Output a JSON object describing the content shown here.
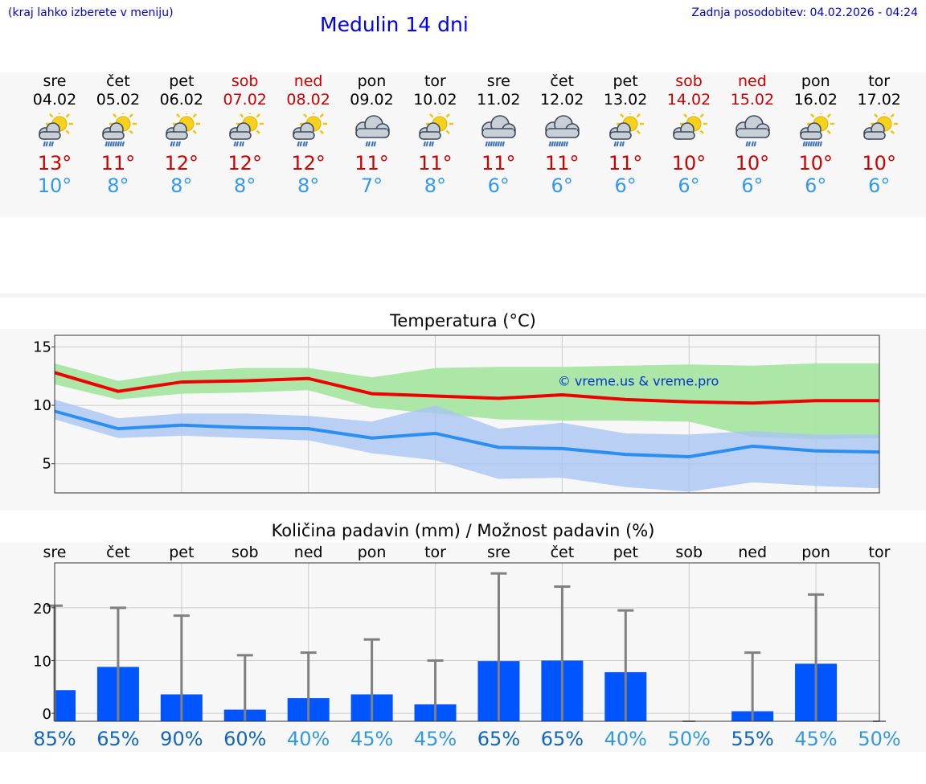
{
  "header": {
    "hint": "(kraj lahko izberete v meniju)",
    "title": "Medulin 14 dni",
    "updated": "Zadnja posodobitev: 04.02.2026 - 04:24"
  },
  "days": [
    {
      "name": "sre",
      "date": "04.02",
      "tmax": "13°",
      "tmin": "10°",
      "weekend": false,
      "icon": "sun-cloud-rain-icon"
    },
    {
      "name": "čet",
      "date": "05.02",
      "tmax": "11°",
      "tmin": "8°",
      "weekend": false,
      "icon": "sun-cloud-heavy-rain-icon"
    },
    {
      "name": "pet",
      "date": "06.02",
      "tmax": "12°",
      "tmin": "8°",
      "weekend": false,
      "icon": "sun-cloud-rain-icon"
    },
    {
      "name": "sob",
      "date": "07.02",
      "tmax": "12°",
      "tmin": "8°",
      "weekend": true,
      "icon": "sun-cloud-rain-icon"
    },
    {
      "name": "ned",
      "date": "08.02",
      "tmax": "12°",
      "tmin": "8°",
      "weekend": true,
      "icon": "sun-cloud-rain-icon"
    },
    {
      "name": "pon",
      "date": "09.02",
      "tmax": "11°",
      "tmin": "7°",
      "weekend": false,
      "icon": "cloud-rain-icon"
    },
    {
      "name": "tor",
      "date": "10.02",
      "tmax": "11°",
      "tmin": "8°",
      "weekend": false,
      "icon": "sun-cloud-rain-icon"
    },
    {
      "name": "sre",
      "date": "11.02",
      "tmax": "11°",
      "tmin": "6°",
      "weekend": false,
      "icon": "cloud-heavy-rain-icon"
    },
    {
      "name": "čet",
      "date": "12.02",
      "tmax": "11°",
      "tmin": "6°",
      "weekend": false,
      "icon": "cloud-heavy-rain-icon"
    },
    {
      "name": "pet",
      "date": "13.02",
      "tmax": "11°",
      "tmin": "6°",
      "weekend": false,
      "icon": "sun-cloud-rain-icon"
    },
    {
      "name": "sob",
      "date": "14.02",
      "tmax": "10°",
      "tmin": "6°",
      "weekend": true,
      "icon": "sun-cloud-icon"
    },
    {
      "name": "ned",
      "date": "15.02",
      "tmax": "10°",
      "tmin": "6°",
      "weekend": true,
      "icon": "cloud-rain-icon"
    },
    {
      "name": "pon",
      "date": "16.02",
      "tmax": "10°",
      "tmin": "6°",
      "weekend": false,
      "icon": "sun-cloud-heavy-rain-icon"
    },
    {
      "name": "tor",
      "date": "17.02",
      "tmax": "10°",
      "tmin": "6°",
      "weekend": false,
      "icon": "sun-cloud-icon"
    }
  ],
  "colors": {
    "max_line": "#ee0000",
    "max_band": "#a8e6a3",
    "min_line": "#2a8ff0",
    "min_band": "#a9c4f2",
    "bar": "#0055ff",
    "whisker": "#808080",
    "pct_dark": "#1166bb",
    "pct_light": "#3399dd",
    "weekend": "#cc0000"
  },
  "chart_data": [
    {
      "type": "line",
      "title": "Temperatura (°C)",
      "watermark": "© vreme.us & vreme.pro",
      "ylim": [
        2.5,
        16
      ],
      "yticks": [
        5,
        10,
        15
      ],
      "series": [
        {
          "name": "max",
          "values": [
            12.8,
            11.2,
            12.0,
            12.1,
            12.3,
            11.0,
            10.8,
            10.6,
            10.9,
            10.5,
            10.3,
            10.2,
            10.4,
            10.4
          ],
          "band_low": [
            11.8,
            10.5,
            11.0,
            11.1,
            11.3,
            9.8,
            9.3,
            8.8,
            8.7,
            8.7,
            8.6,
            7.3,
            7.1,
            7.2
          ],
          "band_high": [
            13.6,
            12.1,
            12.9,
            13.2,
            13.2,
            12.4,
            13.2,
            13.3,
            13.3,
            13.4,
            13.5,
            13.4,
            13.6,
            13.6
          ]
        },
        {
          "name": "min",
          "values": [
            9.5,
            8.0,
            8.3,
            8.1,
            8.0,
            7.2,
            7.6,
            6.4,
            6.3,
            5.8,
            5.6,
            6.5,
            6.1,
            6.0
          ],
          "band_low": [
            8.8,
            7.2,
            7.4,
            7.2,
            7.0,
            5.9,
            5.3,
            3.7,
            3.8,
            3.0,
            2.6,
            3.4,
            3.1,
            2.9
          ],
          "band_high": [
            10.5,
            8.9,
            9.3,
            9.3,
            9.1,
            8.6,
            10.0,
            8.0,
            8.5,
            7.6,
            7.5,
            7.8,
            7.5,
            7.5
          ]
        }
      ]
    },
    {
      "type": "bar",
      "title": "Količina padavin (mm) / Možnost padavin (%)",
      "categories": [
        "sre",
        "čet",
        "pet",
        "sob",
        "ned",
        "pon",
        "tor",
        "sre",
        "čet",
        "pet",
        "sob",
        "ned",
        "pon",
        "tor"
      ],
      "values": [
        4.4,
        8.8,
        3.6,
        0.7,
        2.9,
        3.6,
        1.7,
        9.9,
        10.0,
        7.8,
        0.0,
        0.4,
        9.4,
        0.0
      ],
      "max_values": [
        20.4,
        20.0,
        18.5,
        11.0,
        11.5,
        14.0,
        10.0,
        26.5,
        24.0,
        19.5,
        0.0,
        11.5,
        22.5,
        0.0
      ],
      "probability": [
        "85%",
        "65%",
        "90%",
        "60%",
        "40%",
        "45%",
        "45%",
        "65%",
        "65%",
        "40%",
        "50%",
        "55%",
        "45%",
        "50%"
      ],
      "ylim": [
        -1.5,
        28.5
      ],
      "yticks": [
        0,
        10,
        20
      ]
    }
  ]
}
